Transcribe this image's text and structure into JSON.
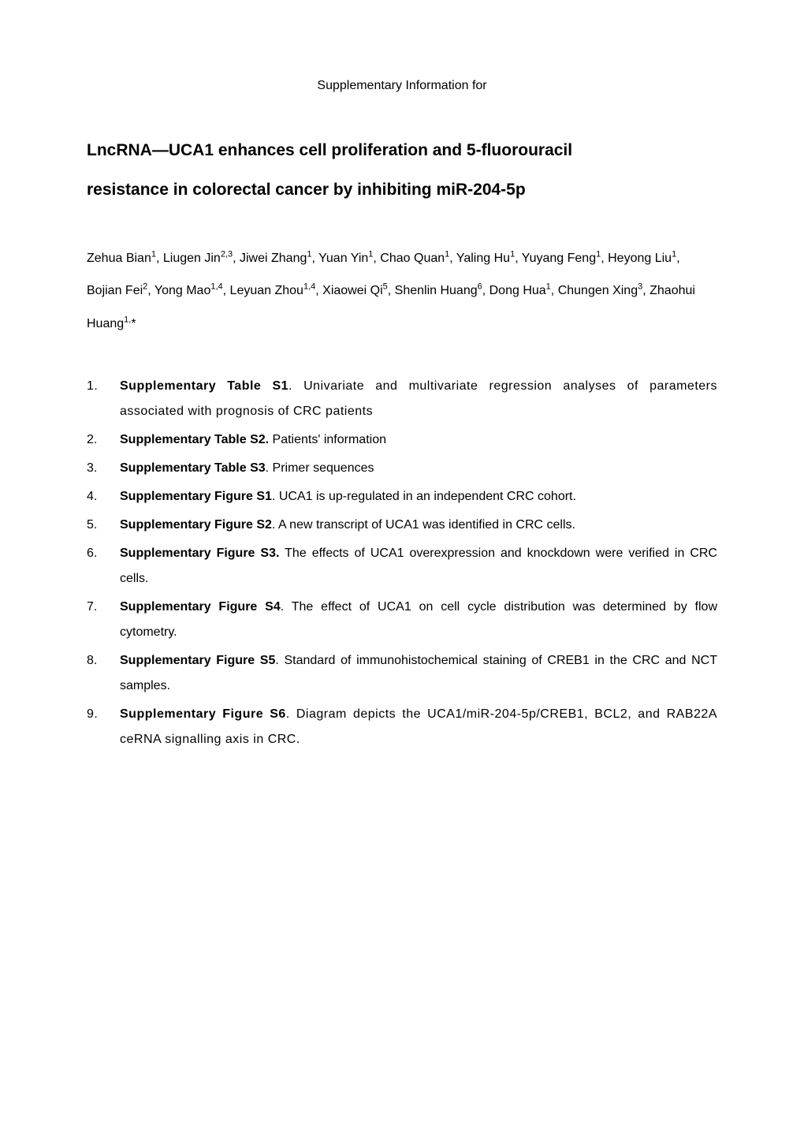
{
  "header": {
    "supplementary_label": "Supplementary Information for"
  },
  "title": {
    "line1": "LncRNA—UCA1 enhances cell proliferation and 5-fluorouracil",
    "line2": "resistance in colorectal cancer by inhibiting miR-204-5p"
  },
  "authors": {
    "text_parts": [
      "Zehua Bian",
      "1",
      ", Liugen Jin",
      "2,3",
      ", Jiwei Zhang",
      "1",
      ", Yuan Yin",
      "1",
      ", Chao Quan",
      "1",
      ", Yaling Hu",
      "1",
      ", Yuyang Feng",
      "1",
      ", Heyong Liu",
      "1",
      ", Bojian Fei",
      "2",
      ", Yong Mao",
      "1,4",
      ", Leyuan Zhou",
      "1,4",
      ", Xiaowei Qi",
      "5",
      ", Shenlin Huang",
      "6",
      ", Dong Hua",
      "1",
      ", Chungen Xing",
      "3",
      ", Zhaohui Huang",
      "1,",
      "*"
    ]
  },
  "items": [
    {
      "bold": "Supplementary Table S1",
      "rest": ". Univariate and multivariate regression analyses of parameters associated with prognosis of CRC patients",
      "wide": true
    },
    {
      "bold": "Supplementary Table S2.",
      "rest": " Patients' information",
      "wide": false
    },
    {
      "bold": "Supplementary Table S3",
      "rest": ". Primer sequences",
      "wide": false
    },
    {
      "bold": "Supplementary Figure S1",
      "rest": ". UCA1 is up-regulated in an independent CRC cohort.",
      "wide": false
    },
    {
      "bold": "Supplementary Figure S2",
      "rest": ". A new transcript of UCA1 was identified in CRC cells.",
      "wide": false
    },
    {
      "bold": "Supplementary Figure S3.",
      "rest": " The effects of UCA1 overexpression and knockdown were verified in CRC cells.",
      "wide": false
    },
    {
      "bold": "Supplementary Figure S4",
      "rest": ". The effect of UCA1 on cell cycle distribution was determined by flow cytometry.",
      "wide": false
    },
    {
      "bold": "Supplementary Figure S5",
      "rest": ". Standard of immunohistochemical staining of CREB1 in the CRC and NCT samples.",
      "wide": false
    },
    {
      "bold": "Supplementary Figure S6",
      "rest": ". Diagram depicts the UCA1/miR-204-5p/CREB1, BCL2, and RAB22A ceRNA signalling axis in CRC.",
      "wide": true
    }
  ],
  "colors": {
    "background": "#ffffff",
    "text": "#000000"
  },
  "typography": {
    "body_font": "Arial",
    "supp_label_size": 16,
    "title_size": 21,
    "title_weight": "bold",
    "authors_size": 16,
    "list_size": 16,
    "superscript_size": 11
  }
}
